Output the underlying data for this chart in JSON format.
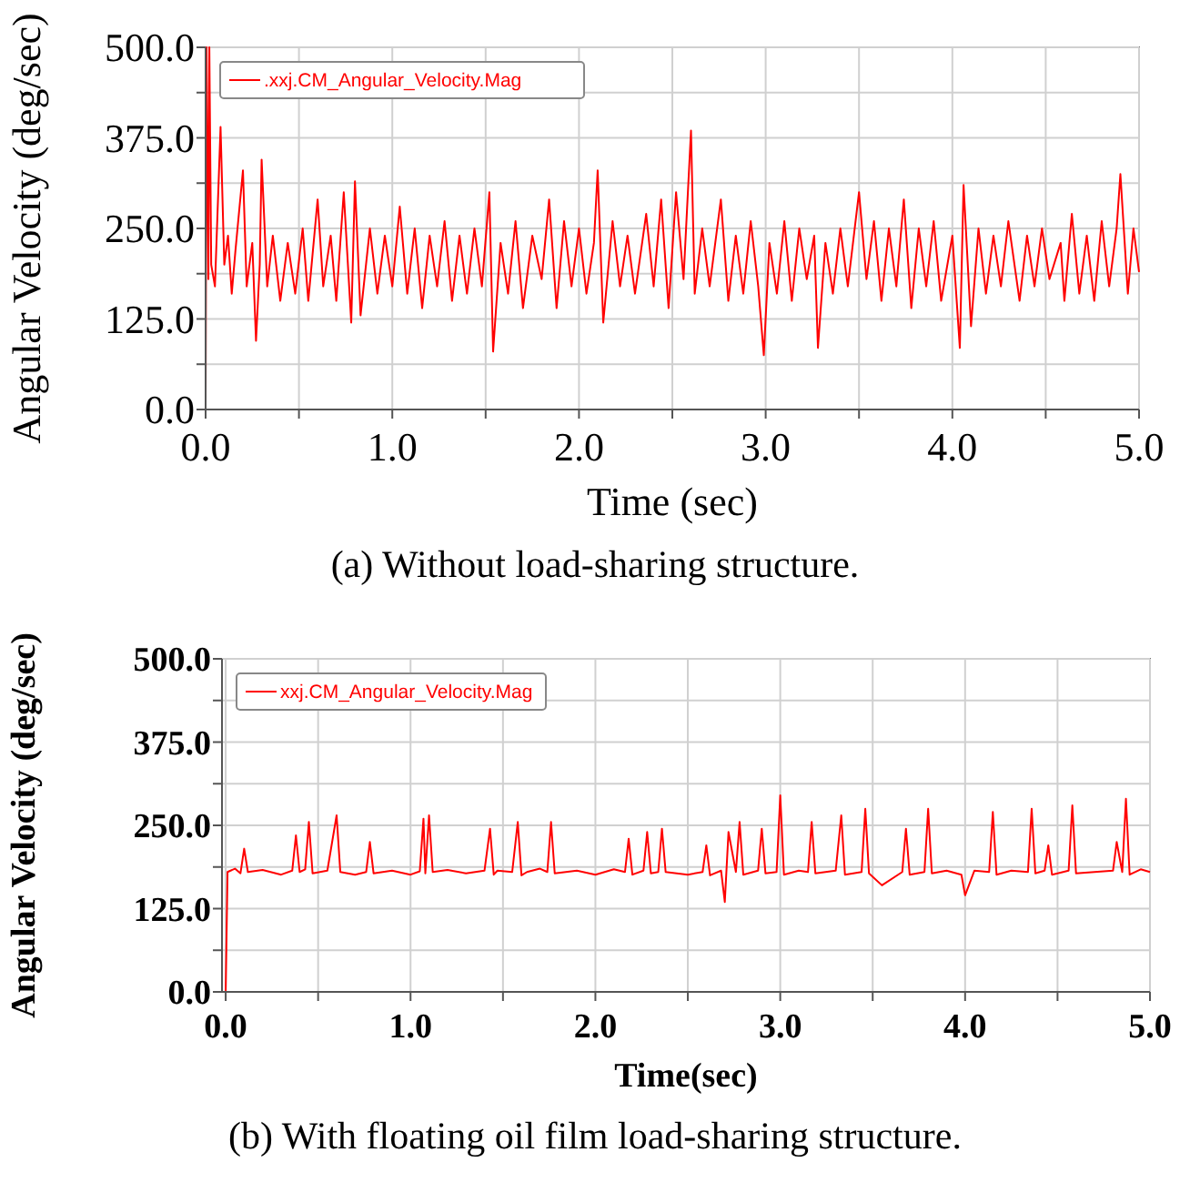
{
  "chart_data": [
    {
      "type": "line",
      "xlabel": "Time (sec)",
      "ylabel": "Angular Velocity (deg/sec)",
      "xlim": [
        0,
        5
      ],
      "ylim": [
        0,
        500
      ],
      "xticks": [
        {
          "value": 0,
          "label": "0.0"
        },
        {
          "value": 0.5,
          "label": null
        },
        {
          "value": 1,
          "label": "1.0"
        },
        {
          "value": 1.5,
          "label": null
        },
        {
          "value": 2,
          "label": "2.0"
        },
        {
          "value": 2.5,
          "label": null
        },
        {
          "value": 3,
          "label": "3.0"
        },
        {
          "value": 3.5,
          "label": null
        },
        {
          "value": 4,
          "label": "4.0"
        },
        {
          "value": 4.5,
          "label": null
        },
        {
          "value": 5,
          "label": "5.0"
        }
      ],
      "yticks": [
        {
          "value": 0,
          "label": "0.0"
        },
        {
          "value": 62.5,
          "label": null
        },
        {
          "value": 125,
          "label": "125.0"
        },
        {
          "value": 187.5,
          "label": null
        },
        {
          "value": 250,
          "label": "250.0"
        },
        {
          "value": 312.5,
          "label": null
        },
        {
          "value": 375,
          "label": "375.0"
        },
        {
          "value": 437.5,
          "label": null
        },
        {
          "value": 500,
          "label": "500.0"
        }
      ],
      "grid": true,
      "legend": "top left",
      "line_style": "solid",
      "marker": "none",
      "annotations": [
        "(a) Without load-sharing structure."
      ],
      "series": [
        {
          "name": ".xxj.CM_Angular_Velocity.Mag",
          "color": "#ff0000",
          "x": [
            0,
            0.005,
            0.015,
            0.02,
            0.03,
            0.05,
            0.08,
            0.1,
            0.12,
            0.14,
            0.16,
            0.2,
            0.22,
            0.25,
            0.27,
            0.29,
            0.3,
            0.33,
            0.36,
            0.4,
            0.44,
            0.48,
            0.52,
            0.55,
            0.6,
            0.63,
            0.67,
            0.7,
            0.74,
            0.78,
            0.8,
            0.83,
            0.88,
            0.92,
            0.96,
            1.0,
            1.04,
            1.08,
            1.12,
            1.16,
            1.2,
            1.24,
            1.28,
            1.32,
            1.36,
            1.4,
            1.44,
            1.48,
            1.52,
            1.54,
            1.58,
            1.62,
            1.66,
            1.7,
            1.75,
            1.8,
            1.84,
            1.88,
            1.92,
            1.96,
            2.0,
            2.04,
            2.08,
            2.1,
            2.13,
            2.18,
            2.22,
            2.26,
            2.3,
            2.36,
            2.4,
            2.44,
            2.48,
            2.52,
            2.56,
            2.6,
            2.62,
            2.66,
            2.7,
            2.76,
            2.8,
            2.84,
            2.88,
            2.92,
            2.96,
            2.99,
            3.02,
            3.06,
            3.1,
            3.14,
            3.18,
            3.22,
            3.26,
            3.28,
            3.32,
            3.36,
            3.4,
            3.44,
            3.5,
            3.54,
            3.58,
            3.62,
            3.66,
            3.7,
            3.74,
            3.78,
            3.82,
            3.86,
            3.9,
            3.94,
            4.0,
            4.04,
            4.06,
            4.1,
            4.14,
            4.18,
            4.22,
            4.26,
            4.3,
            4.36,
            4.4,
            4.44,
            4.48,
            4.52,
            4.58,
            4.6,
            4.64,
            4.68,
            4.72,
            4.76,
            4.8,
            4.84,
            4.88,
            4.9,
            4.94,
            4.97,
            5.0
          ],
          "values": [
            0,
            500,
            180,
            500,
            200,
            170,
            390,
            200,
            240,
            160,
            220,
            330,
            170,
            230,
            95,
            200,
            345,
            170,
            240,
            150,
            230,
            160,
            250,
            150,
            290,
            170,
            240,
            150,
            300,
            120,
            315,
            130,
            250,
            160,
            240,
            170,
            280,
            160,
            250,
            140,
            240,
            170,
            260,
            150,
            240,
            160,
            250,
            170,
            300,
            80,
            230,
            160,
            260,
            140,
            240,
            180,
            290,
            140,
            260,
            170,
            250,
            160,
            230,
            330,
            120,
            260,
            170,
            240,
            160,
            270,
            170,
            290,
            140,
            300,
            180,
            385,
            160,
            250,
            170,
            290,
            150,
            240,
            160,
            260,
            170,
            75,
            230,
            160,
            260,
            150,
            250,
            180,
            240,
            85,
            230,
            160,
            250,
            170,
            300,
            180,
            260,
            150,
            250,
            170,
            290,
            140,
            250,
            170,
            260,
            150,
            240,
            85,
            310,
            115,
            250,
            160,
            240,
            170,
            260,
            150,
            240,
            170,
            250,
            180,
            230,
            150,
            270,
            160,
            240,
            150,
            260,
            170,
            250,
            325,
            160,
            250,
            190
          ]
        }
      ]
    },
    {
      "type": "line",
      "xlabel": "Time(sec)",
      "ylabel": "Angular Velocity (deg/sec)",
      "xlim": [
        -0.02,
        5
      ],
      "ylim": [
        0,
        500
      ],
      "xticks": [
        {
          "value": 0,
          "label": "0.0"
        },
        {
          "value": 0.5,
          "label": null
        },
        {
          "value": 1,
          "label": "1.0"
        },
        {
          "value": 1.5,
          "label": null
        },
        {
          "value": 2,
          "label": "2.0"
        },
        {
          "value": 2.5,
          "label": null
        },
        {
          "value": 3,
          "label": "3.0"
        },
        {
          "value": 3.5,
          "label": null
        },
        {
          "value": 4,
          "label": "4.0"
        },
        {
          "value": 4.5,
          "label": null
        },
        {
          "value": 5,
          "label": "5.0"
        }
      ],
      "yticks": [
        {
          "value": 0,
          "label": "0.0"
        },
        {
          "value": 62.5,
          "label": null
        },
        {
          "value": 125,
          "label": "125.0"
        },
        {
          "value": 187.5,
          "label": null
        },
        {
          "value": 250,
          "label": "250.0"
        },
        {
          "value": 312.5,
          "label": null
        },
        {
          "value": 375,
          "label": "375.0"
        },
        {
          "value": 437.5,
          "label": null
        },
        {
          "value": 500,
          "label": "500.0"
        }
      ],
      "grid": true,
      "legend": "top left",
      "line_style": "solid",
      "marker": "none",
      "annotations": [
        "(b) With floating oil film load-sharing structure."
      ],
      "series": [
        {
          "name": "xxj.CM_Angular_Velocity.Mag",
          "color": "#ff0000",
          "x": [
            0,
            0.01,
            0.05,
            0.08,
            0.1,
            0.12,
            0.2,
            0.3,
            0.36,
            0.38,
            0.4,
            0.43,
            0.45,
            0.47,
            0.55,
            0.6,
            0.62,
            0.7,
            0.76,
            0.78,
            0.8,
            0.9,
            1.0,
            1.05,
            1.07,
            1.08,
            1.1,
            1.12,
            1.2,
            1.3,
            1.4,
            1.43,
            1.45,
            1.47,
            1.55,
            1.58,
            1.6,
            1.63,
            1.7,
            1.74,
            1.76,
            1.78,
            1.9,
            2.0,
            2.1,
            2.16,
            2.18,
            2.2,
            2.26,
            2.28,
            2.3,
            2.34,
            2.36,
            2.38,
            2.5,
            2.58,
            2.6,
            2.62,
            2.68,
            2.7,
            2.72,
            2.76,
            2.78,
            2.8,
            2.88,
            2.9,
            2.92,
            2.98,
            3.0,
            3.02,
            3.1,
            3.15,
            3.17,
            3.19,
            3.3,
            3.33,
            3.35,
            3.44,
            3.46,
            3.48,
            3.55,
            3.66,
            3.68,
            3.7,
            3.78,
            3.8,
            3.82,
            3.9,
            3.98,
            4.0,
            4.05,
            4.13,
            4.15,
            4.17,
            4.25,
            4.34,
            4.36,
            4.38,
            4.43,
            4.45,
            4.47,
            4.56,
            4.58,
            4.6,
            4.7,
            4.8,
            4.82,
            4.85,
            4.87,
            4.89,
            4.95,
            5.0
          ],
          "values": [
            0,
            180,
            185,
            178,
            215,
            180,
            183,
            176,
            182,
            235,
            180,
            184,
            255,
            178,
            182,
            265,
            180,
            176,
            180,
            225,
            178,
            182,
            176,
            181,
            260,
            178,
            265,
            180,
            183,
            178,
            182,
            245,
            176,
            182,
            180,
            255,
            175,
            180,
            185,
            180,
            255,
            178,
            182,
            176,
            184,
            180,
            230,
            176,
            182,
            240,
            178,
            180,
            245,
            180,
            176,
            180,
            220,
            175,
            182,
            135,
            240,
            180,
            255,
            176,
            182,
            245,
            178,
            180,
            295,
            176,
            182,
            180,
            255,
            178,
            182,
            265,
            176,
            180,
            275,
            178,
            160,
            180,
            245,
            176,
            180,
            275,
            178,
            182,
            176,
            145,
            182,
            180,
            270,
            176,
            182,
            180,
            275,
            178,
            182,
            220,
            176,
            182,
            280,
            178,
            180,
            182,
            225,
            180,
            290,
            176,
            184,
            180
          ]
        }
      ]
    }
  ]
}
